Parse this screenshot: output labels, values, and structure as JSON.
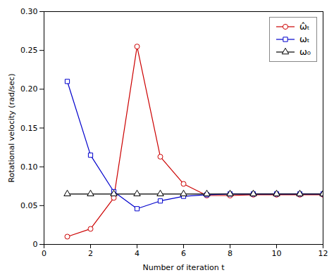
{
  "chart_data": {
    "type": "line",
    "xlabel": "Number of iteration t",
    "ylabel": "Rotational velocity (rad/sec)",
    "x": [
      1,
      2,
      3,
      4,
      5,
      6,
      7,
      8,
      9,
      10,
      11,
      12
    ],
    "series": [
      {
        "name": "ω̂ₜ",
        "color": "#CC0000",
        "marker": "circle",
        "values": [
          0.01,
          0.02,
          0.06,
          0.255,
          0.113,
          0.078,
          0.063,
          0.063,
          0.064,
          0.064,
          0.064,
          0.064
        ]
      },
      {
        "name": "ωₜ",
        "color": "#0000CC",
        "marker": "square",
        "values": [
          0.21,
          0.115,
          0.068,
          0.046,
          0.056,
          0.062,
          0.064,
          0.065,
          0.065,
          0.065,
          0.065,
          0.065
        ]
      },
      {
        "name": "ω₀",
        "color": "#000000",
        "marker": "triangle",
        "values": [
          0.065,
          0.065,
          0.065,
          0.065,
          0.065,
          0.065,
          0.065,
          0.065,
          0.065,
          0.065,
          0.065,
          0.065
        ]
      }
    ],
    "xlim": [
      0,
      12
    ],
    "ylim": [
      0,
      0.3
    ],
    "xticks": [
      0,
      2,
      4,
      6,
      8,
      10,
      12
    ],
    "yticks": [
      0,
      0.05,
      {
        "value": 0.1,
        "label": "0.10"
      },
      0.15,
      {
        "value": 0.2,
        "label": "0.20"
      },
      0.25,
      {
        "value": 0.3,
        "label": "0.30"
      }
    ],
    "grid": false,
    "legend": "upper right"
  }
}
